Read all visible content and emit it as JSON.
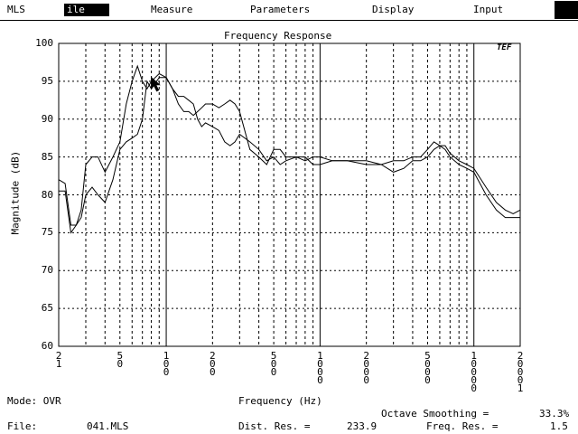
{
  "menubar": {
    "items": [
      {
        "label": "MLS"
      },
      {
        "label": "ile",
        "active": true
      },
      {
        "label": "Measure"
      },
      {
        "label": "Parameters"
      },
      {
        "label": "Display"
      },
      {
        "label": "Input"
      }
    ]
  },
  "chart_data": {
    "type": "line",
    "title": "Frequency Response",
    "xlabel": "Frequency (Hz)",
    "ylabel": "Magnitude (dB)",
    "xscale": "log",
    "xlim": [
      20,
      20000
    ],
    "ylim": [
      60,
      100
    ],
    "yticks": [
      "60",
      "65",
      "70",
      "75",
      "80",
      "85",
      "90",
      "95",
      "100"
    ],
    "xticks": [
      {
        "value": 20,
        "label": "2\n1"
      },
      {
        "value": 50,
        "label": "5\n0"
      },
      {
        "value": 100,
        "label": "1\n0\n0"
      },
      {
        "value": 200,
        "label": "2\n0\n0"
      },
      {
        "value": 500,
        "label": "5\n0\n0"
      },
      {
        "value": 1000,
        "label": "1\n0\n0\n0"
      },
      {
        "value": 2000,
        "label": "2\n0\n0\n0"
      },
      {
        "value": 5000,
        "label": "5\n0\n0\n0"
      },
      {
        "value": 10000,
        "label": "1\n0\n0\n0\n0"
      },
      {
        "value": 20000,
        "label": "2\n0\n0\n0\n1"
      }
    ],
    "grid": true,
    "series": [
      {
        "x": [
          20,
          22,
          24,
          26,
          28,
          30,
          33,
          36,
          40,
          45,
          50,
          55,
          60,
          65,
          70,
          75,
          80,
          90,
          100,
          110,
          120,
          130,
          140,
          150,
          160,
          170,
          180,
          200,
          220,
          240,
          260,
          280,
          300,
          350,
          400,
          450,
          500,
          550,
          600,
          700,
          800,
          900,
          1000,
          1200,
          1500,
          2000,
          2500,
          3000,
          3500,
          4000,
          4500,
          5000,
          5500,
          6000,
          6500,
          7000,
          8000,
          9000,
          10000,
          12000,
          14000,
          16000,
          18000,
          20000
        ],
        "y": [
          82,
          81.5,
          76,
          76,
          78,
          84,
          85,
          85,
          83,
          85,
          87,
          92,
          95,
          97,
          95,
          94,
          95,
          96,
          95.5,
          94,
          92,
          91,
          91,
          90.5,
          91,
          91.5,
          92,
          92,
          91.5,
          92,
          92.5,
          92,
          91,
          86,
          85,
          84,
          86,
          86,
          85,
          85,
          84.5,
          85,
          85,
          84.5,
          84.5,
          84,
          84,
          84.5,
          84.5,
          85,
          85,
          86,
          87,
          86.5,
          86,
          85,
          84,
          83.5,
          83,
          80,
          78,
          77,
          77,
          77
        ]
      },
      {
        "x": [
          20,
          22,
          24,
          26,
          28,
          30,
          33,
          36,
          40,
          45,
          50,
          55,
          60,
          65,
          70,
          75,
          80,
          90,
          100,
          110,
          120,
          130,
          140,
          150,
          160,
          170,
          180,
          200,
          220,
          240,
          260,
          280,
          300,
          350,
          400,
          450,
          500,
          550,
          600,
          700,
          800,
          900,
          1000,
          1200,
          1500,
          2000,
          2500,
          3000,
          3500,
          4000,
          4500,
          5000,
          5500,
          6000,
          6500,
          7000,
          8000,
          9000,
          10000,
          12000,
          14000,
          16000,
          18000,
          20000
        ],
        "y": [
          80.5,
          80.5,
          75,
          76,
          77,
          80,
          81,
          80,
          79,
          82,
          86,
          87,
          87.5,
          88,
          90,
          95,
          94,
          95.5,
          95.5,
          94,
          93,
          93,
          92.5,
          92,
          90,
          89,
          89.5,
          89,
          88.5,
          87,
          86.5,
          87,
          88,
          87,
          86,
          84.5,
          85,
          84,
          84.5,
          85,
          85,
          84,
          84,
          84.5,
          84.5,
          84.5,
          84,
          83,
          83.5,
          84.5,
          84.5,
          85,
          86,
          86.5,
          86.5,
          85.5,
          84.5,
          84,
          83.5,
          81,
          79,
          78,
          77.5,
          78
        ]
      }
    ]
  },
  "bottom": {
    "mode_label": "Mode: OVR",
    "freq_axis_label": "Frequency (Hz)",
    "octave_label": "Octave Smoothing =",
    "octave_value": "33.3%",
    "file_label": "File:",
    "file_value": "041.MLS",
    "dist_label": "Dist. Res. =",
    "dist_value": "233.9",
    "freq_res_label": "Freq. Res. =",
    "freq_res_value": "1.5"
  },
  "logo_text": "TEF"
}
